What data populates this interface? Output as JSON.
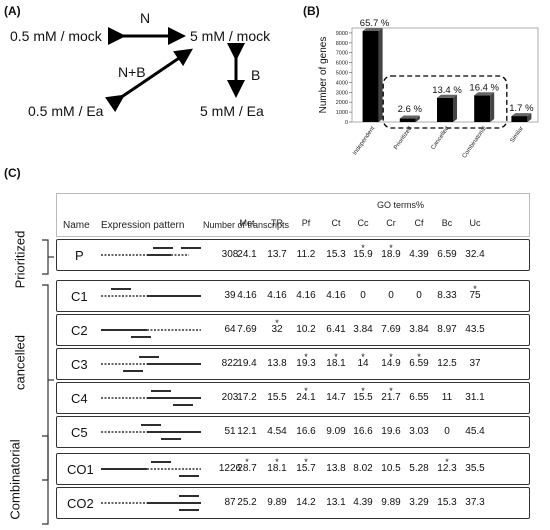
{
  "panelA": {
    "label": "(A)",
    "nodes": {
      "top_left": "0.5 mM / mock",
      "top_right": "5 mM / mock",
      "bottom_left": "0.5 mM / Ea",
      "bottom_right": "5 mM / Ea"
    },
    "arrows": {
      "horizontal": "N",
      "vertical": "B",
      "diagonal": "N+B"
    }
  },
  "panelB": {
    "label": "(B)",
    "chart_data": {
      "type": "bar",
      "categories": [
        "Independent",
        "Prioritized",
        "Cancelled",
        "Combinatorial",
        "Similar"
      ],
      "values": [
        9200,
        350,
        2450,
        2700,
        600
      ],
      "percent_labels": [
        "65.7 %",
        "2.6 %",
        "13.4 %",
        "16.4 %",
        "1.7 %"
      ],
      "ylabel": "Number of genes",
      "yticks": [
        0,
        1000,
        2000,
        3000,
        4000,
        5000,
        6000,
        7000,
        8000,
        9000
      ],
      "ylim": [
        0,
        9500
      ],
      "bar_color": "#000000"
    }
  },
  "panelC": {
    "label": "(C)",
    "headers": {
      "name": "Name",
      "pattern": "Expression pattern",
      "transcripts": "Number of transcripts",
      "go_title": "GO terms%",
      "go_cols": [
        "Met",
        "TR",
        "Pf",
        "Ct",
        "Cc",
        "Cr",
        "Cf",
        "Bc",
        "Uc"
      ]
    },
    "groups": [
      "Prioritized",
      "cancelled",
      "Combinatorial"
    ],
    "rows": [
      {
        "name": "P",
        "n": "308",
        "vals": [
          "24.1",
          "13.7",
          "11.2",
          "15.3",
          "15.9",
          "18.9",
          "4.39",
          "6.59",
          "32.4"
        ],
        "stars": [
          4,
          5
        ]
      },
      {
        "name": "C1",
        "n": "39",
        "vals": [
          "4.16",
          "4.16",
          "4.16",
          "4.16",
          "0",
          "0",
          "0",
          "8.33",
          "75"
        ],
        "stars": [
          8
        ]
      },
      {
        "name": "C2",
        "n": "64",
        "vals": [
          "7.69",
          "32",
          "10.2",
          "6.41",
          "3.84",
          "7.69",
          "3.84",
          "8.97",
          "43.5"
        ],
        "stars": [
          1
        ]
      },
      {
        "name": "C3",
        "n": "822",
        "vals": [
          "19.4",
          "13.8",
          "19.3",
          "18.1",
          "14",
          "14.9",
          "6.59",
          "12.5",
          "37"
        ],
        "stars": [
          2,
          3,
          4,
          5,
          6
        ]
      },
      {
        "name": "C4",
        "n": "203",
        "vals": [
          "17.2",
          "15.5",
          "24.1",
          "14.7",
          "15.5",
          "21.7",
          "6.55",
          "11",
          "31.1"
        ],
        "stars": [
          2,
          4,
          5
        ]
      },
      {
        "name": "C5",
        "n": "51",
        "vals": [
          "12.1",
          "4.54",
          "16.6",
          "9.09",
          "16.6",
          "19.6",
          "3.03",
          "0",
          "45.4"
        ],
        "stars": []
      },
      {
        "name": "CO1",
        "n": "1226",
        "vals": [
          "28.7",
          "18.1",
          "15.7",
          "13.8",
          "8.02",
          "10.5",
          "5.28",
          "12.3",
          "35.5"
        ],
        "stars": [
          0,
          1,
          2,
          7
        ]
      },
      {
        "name": "CO2",
        "n": "87",
        "vals": [
          "25.2",
          "9.89",
          "14.2",
          "13.1",
          "4.39",
          "9.89",
          "3.29",
          "15.3",
          "37.3"
        ],
        "stars": []
      }
    ]
  }
}
